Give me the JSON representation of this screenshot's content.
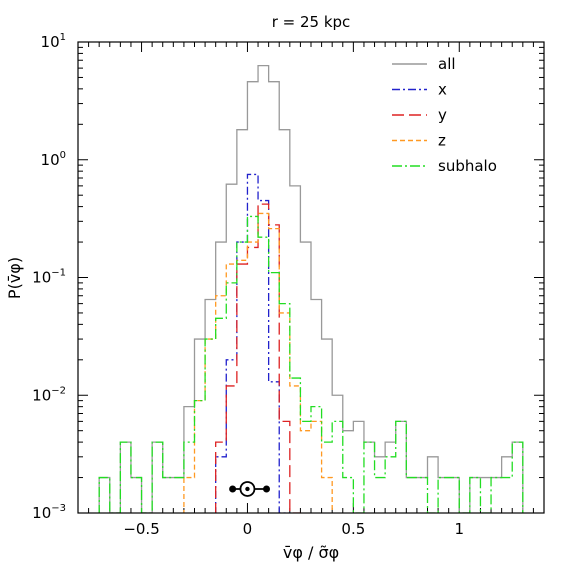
{
  "chart_data": {
    "type": "histogram-step",
    "title": "r = 25 kpc",
    "xlabel": "v̄φ / σ̃φ",
    "ylabel": "P(v̄φ)",
    "xlim": [
      -0.8,
      1.4
    ],
    "ylim": [
      0.001,
      10
    ],
    "yscale": "log",
    "x_ticks": [
      -0.5,
      0,
      0.5,
      1
    ],
    "x_tick_labels": [
      "−0.5",
      "0",
      "0.5",
      "1"
    ],
    "y_ticks": [
      0.001,
      0.01,
      0.1,
      1,
      10
    ],
    "y_tick_labels": [
      {
        "base": "10",
        "exp": "−3"
      },
      {
        "base": "10",
        "exp": "−2"
      },
      {
        "base": "10",
        "exp": "−1"
      },
      {
        "base": "10",
        "exp": "0"
      },
      {
        "base": "10",
        "exp": "1"
      }
    ],
    "bin_width": 0.05,
    "legend_position": "top-right",
    "series": [
      {
        "name": "all",
        "color": "#999999",
        "dash": "",
        "bins": [
          [
            -0.7,
            0.002
          ],
          [
            -0.65,
            0.001
          ],
          [
            -0.6,
            0.004
          ],
          [
            -0.55,
            0.002
          ],
          [
            -0.5,
            0.001
          ],
          [
            -0.45,
            0.004
          ],
          [
            -0.4,
            0.002
          ],
          [
            -0.35,
            0.002
          ],
          [
            -0.3,
            0.008
          ],
          [
            -0.25,
            0.03
          ],
          [
            -0.2,
            0.065
          ],
          [
            -0.15,
            0.2
          ],
          [
            -0.1,
            0.62
          ],
          [
            -0.05,
            1.8
          ],
          [
            0.0,
            4.6
          ],
          [
            0.05,
            6.3
          ],
          [
            0.1,
            4.6
          ],
          [
            0.15,
            1.8
          ],
          [
            0.2,
            0.6
          ],
          [
            0.25,
            0.2
          ],
          [
            0.3,
            0.065
          ],
          [
            0.35,
            0.03
          ],
          [
            0.4,
            0.01
          ],
          [
            0.45,
            0.005
          ],
          [
            0.5,
            0.006
          ],
          [
            0.55,
            0.004
          ],
          [
            0.6,
            0.003
          ],
          [
            0.65,
            0.004
          ],
          [
            0.7,
            0.006
          ],
          [
            0.75,
            0.002
          ],
          [
            0.8,
            0.002
          ],
          [
            0.85,
            0.003
          ],
          [
            0.9,
            0.002
          ],
          [
            0.95,
            0.002
          ],
          [
            1.0,
            0.001
          ],
          [
            1.05,
            0.002
          ],
          [
            1.1,
            0.002
          ],
          [
            1.15,
            0.002
          ],
          [
            1.2,
            0.003
          ],
          [
            1.25,
            0.004
          ]
        ]
      },
      {
        "name": "x",
        "color": "#2222cc",
        "dash": "8,3,2,3",
        "bins": [
          [
            -0.15,
            0.003
          ],
          [
            -0.1,
            0.02
          ],
          [
            -0.05,
            0.2
          ],
          [
            0.0,
            0.75
          ],
          [
            0.05,
            0.45
          ],
          [
            0.1,
            0.013
          ],
          [
            0.15,
            0.001
          ]
        ]
      },
      {
        "name": "y",
        "color": "#dd2222",
        "dash": "12,5",
        "bins": [
          [
            -0.15,
            0.004
          ],
          [
            -0.1,
            0.012
          ],
          [
            -0.05,
            0.13
          ],
          [
            0.0,
            0.18
          ],
          [
            0.05,
            0.42
          ],
          [
            0.1,
            0.28
          ],
          [
            0.15,
            0.006
          ],
          [
            0.2,
            0.001
          ]
        ]
      },
      {
        "name": "z",
        "color": "#ff9922",
        "dash": "5,3",
        "bins": [
          [
            -0.3,
            0.002
          ],
          [
            -0.25,
            0.009
          ],
          [
            -0.2,
            0.03
          ],
          [
            -0.15,
            0.07
          ],
          [
            -0.1,
            0.13
          ],
          [
            -0.05,
            0.14
          ],
          [
            0.0,
            0.2
          ],
          [
            0.05,
            0.35
          ],
          [
            0.1,
            0.26
          ],
          [
            0.15,
            0.05
          ],
          [
            0.2,
            0.012
          ],
          [
            0.25,
            0.005
          ],
          [
            0.3,
            0.006
          ],
          [
            0.35,
            0.002
          ]
        ]
      },
      {
        "name": "subhalo",
        "color": "#22dd22",
        "dash": "10,3,2,3",
        "bins": [
          [
            -0.7,
            0.002
          ],
          [
            -0.65,
            0.001
          ],
          [
            -0.6,
            0.004
          ],
          [
            -0.55,
            0.002
          ],
          [
            -0.5,
            0.001
          ],
          [
            -0.45,
            0.004
          ],
          [
            -0.4,
            0.002
          ],
          [
            -0.35,
            0.002
          ],
          [
            -0.3,
            0.004
          ],
          [
            -0.25,
            0.009
          ],
          [
            -0.2,
            0.03
          ],
          [
            -0.15,
            0.045
          ],
          [
            -0.1,
            0.09
          ],
          [
            -0.05,
            0.2
          ],
          [
            0.0,
            0.33
          ],
          [
            0.05,
            0.22
          ],
          [
            0.1,
            0.11
          ],
          [
            0.15,
            0.06
          ],
          [
            0.2,
            0.014
          ],
          [
            0.25,
            0.006
          ],
          [
            0.3,
            0.008
          ],
          [
            0.35,
            0.004
          ],
          [
            0.4,
            0.006
          ],
          [
            0.45,
            0.002
          ],
          [
            0.5,
            0.001
          ],
          [
            0.55,
            0.004
          ],
          [
            0.6,
            0.002
          ],
          [
            0.65,
            0.003
          ],
          [
            0.7,
            0.006
          ],
          [
            0.75,
            0.002
          ],
          [
            0.8,
            0.002
          ],
          [
            0.85,
            0.001
          ],
          [
            0.9,
            0.002
          ],
          [
            0.95,
            0.002
          ],
          [
            1.0,
            0.001
          ],
          [
            1.05,
            0.002
          ],
          [
            1.1,
            0.001
          ],
          [
            1.15,
            0.002
          ],
          [
            1.2,
            0.002
          ],
          [
            1.25,
            0.004
          ]
        ]
      }
    ],
    "sun_marker": {
      "x": 0.0,
      "y": 0.0016,
      "xerr_low": -0.07,
      "xerr_high": 0.09
    }
  }
}
